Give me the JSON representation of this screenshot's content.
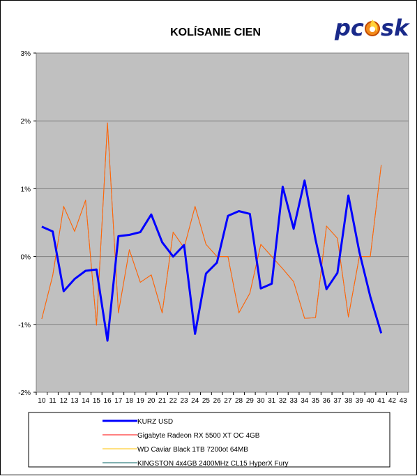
{
  "chart_data": {
    "type": "line",
    "title": "KOLÍSANIE CIEN",
    "xlabel": "",
    "ylabel": "",
    "ylim": [
      -2,
      3
    ],
    "y_ticks": [
      {
        "value": -2,
        "label": "-2%"
      },
      {
        "value": -1,
        "label": "-1%"
      },
      {
        "value": 0,
        "label": "0%"
      },
      {
        "value": 1,
        "label": "1%"
      },
      {
        "value": 2,
        "label": "2%"
      },
      {
        "value": 3,
        "label": "3%"
      }
    ],
    "categories": [
      "10",
      "11",
      "12",
      "13",
      "14",
      "15",
      "16",
      "17",
      "18",
      "19",
      "20",
      "21",
      "22",
      "23",
      "24",
      "25",
      "26",
      "27",
      "28",
      "29",
      "30",
      "31",
      "32",
      "33",
      "34",
      "35",
      "36",
      "37",
      "38",
      "39",
      "40",
      "41",
      "42",
      "43"
    ],
    "grid": true,
    "legend_position": "bottom",
    "plot_background": "#c0c0c0",
    "series": [
      {
        "name": "KURZ USD",
        "color": "#0000ff",
        "width": "thick",
        "values": [
          0.44,
          0.37,
          -0.51,
          -0.33,
          -0.21,
          -0.19,
          -1.24,
          0.3,
          0.32,
          0.36,
          0.62,
          0.21,
          0.0,
          0.17,
          -1.14,
          -0.25,
          -0.09,
          0.6,
          0.67,
          0.63,
          -0.47,
          -0.4,
          1.03,
          0.41,
          1.12,
          0.25,
          -0.48,
          -0.24,
          0.9,
          0.07,
          -0.59,
          -1.13,
          null,
          null
        ]
      },
      {
        "name": "Gigabyte Radeon RX 5500 XT OC 4GB",
        "color": "#ff0000",
        "width": "thin",
        "values": [
          -0.92,
          -0.28,
          0.74,
          0.37,
          0.83,
          -1.01,
          1.97,
          -0.83,
          0.1,
          -0.38,
          -0.27,
          -0.83,
          0.36,
          0.13,
          0.74,
          0.18,
          0.0,
          0.0,
          -0.83,
          -0.54,
          0.18,
          0.0,
          -0.18,
          -0.37,
          -0.91,
          -0.9,
          0.45,
          0.27,
          -0.89,
          0.0,
          0.0,
          1.35,
          null,
          null
        ]
      },
      {
        "name": "WD Caviar Black 1TB 7200ot 64MB",
        "color": "#ffc000",
        "width": "thin",
        "values": [
          null,
          null,
          null,
          null,
          null,
          null,
          null,
          null,
          null,
          null,
          null,
          null,
          null,
          null,
          null,
          null,
          null,
          null,
          null,
          null,
          null,
          null,
          null,
          null,
          null,
          null,
          null,
          null,
          null,
          null,
          null,
          null,
          null,
          null
        ]
      },
      {
        "name": "KINGSTON 4x4GB 2400MHz CL15 HyperX Fury",
        "color": "#006060",
        "width": "thin",
        "values": [
          null,
          null,
          null,
          null,
          null,
          null,
          null,
          null,
          null,
          null,
          null,
          null,
          null,
          null,
          null,
          null,
          null,
          null,
          null,
          null,
          null,
          null,
          null,
          null,
          null,
          null,
          null,
          null,
          null,
          null,
          null,
          null,
          null,
          null
        ]
      }
    ]
  },
  "logo": {
    "part1": "pc",
    "part2": "sk",
    "color1": "#1a2a8a",
    "color2": "#e86a10"
  }
}
